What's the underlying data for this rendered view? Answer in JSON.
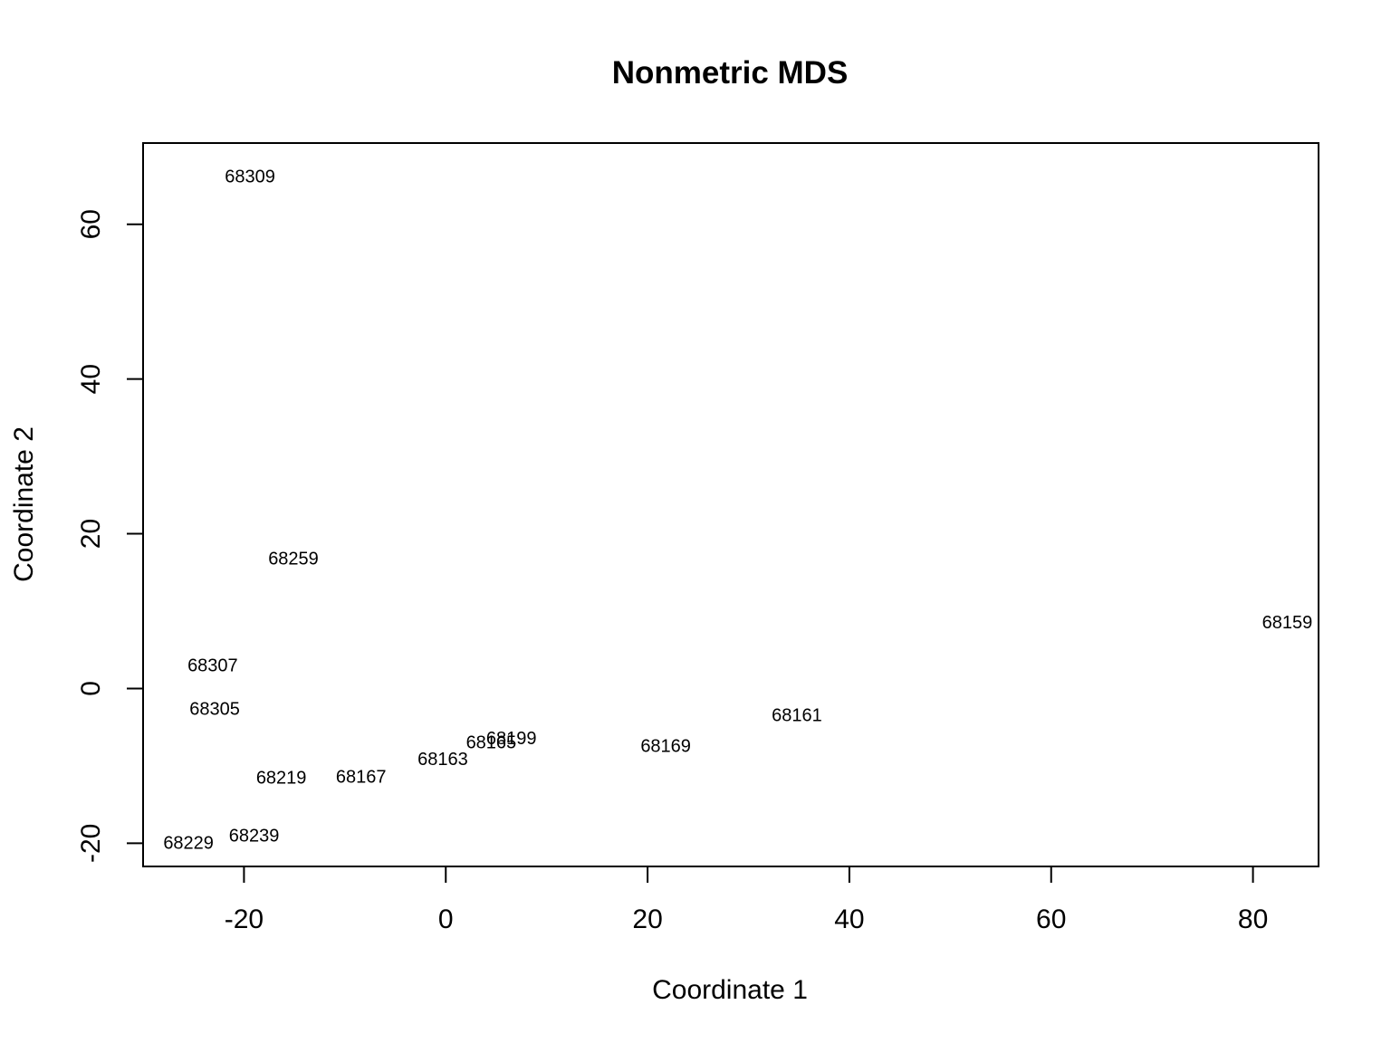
{
  "chart_data": {
    "type": "scatter",
    "title": "Nonmetric MDS",
    "xlabel": "Coordinate 1",
    "ylabel": "Coordinate 2",
    "xlim": [
      -30,
      86.5
    ],
    "ylim": [
      -23,
      70.5
    ],
    "xticks": [
      -20,
      0,
      20,
      40,
      60,
      80
    ],
    "yticks": [
      -20,
      0,
      20,
      40,
      60
    ],
    "xtick_labels": [
      "-20",
      "0",
      "20",
      "40",
      "60",
      "80"
    ],
    "ytick_labels": [
      "-20",
      "0",
      "20",
      "40",
      "60"
    ],
    "grid": false,
    "marker": "text-label",
    "points": [
      {
        "label": "68309",
        "x": -19.4,
        "y": 66.1
      },
      {
        "label": "68259",
        "x": -15.1,
        "y": 16.7
      },
      {
        "label": "68159",
        "x": 83.4,
        "y": 8.5
      },
      {
        "label": "68307",
        "x": -23.1,
        "y": 2.9
      },
      {
        "label": "68305",
        "x": -22.9,
        "y": -2.7
      },
      {
        "label": "68161",
        "x": 34.8,
        "y": -3.5
      },
      {
        "label": "68199",
        "x": 6.5,
        "y": -6.5
      },
      {
        "label": "68165",
        "x": 4.5,
        "y": -7.0
      },
      {
        "label": "68169",
        "x": 21.8,
        "y": -7.5
      },
      {
        "label": "68163",
        "x": -0.3,
        "y": -9.2
      },
      {
        "label": "68219",
        "x": -16.3,
        "y": -11.6
      },
      {
        "label": "68167",
        "x": -8.4,
        "y": -11.5
      },
      {
        "label": "68239",
        "x": -19.0,
        "y": -19.1
      },
      {
        "label": "68229",
        "x": -25.5,
        "y": -20.0
      }
    ]
  }
}
